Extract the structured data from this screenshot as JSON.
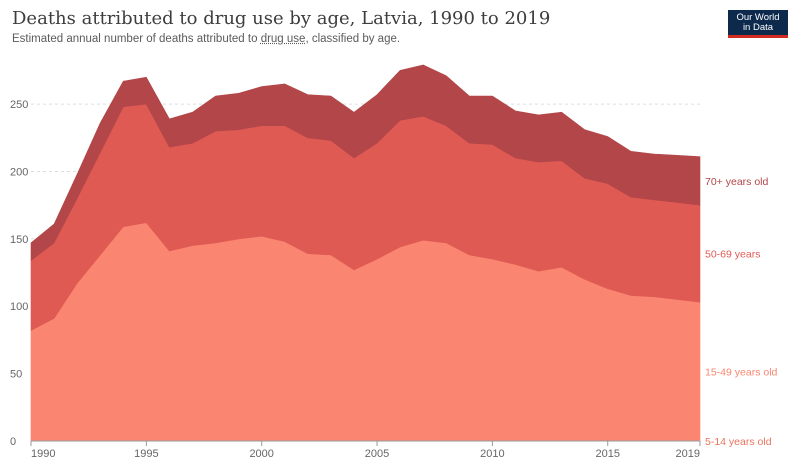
{
  "header": {
    "title": "Deaths attributed to drug use by age, Latvia, 1990 to 2019",
    "subtitle_pre": "Estimated annual number of deaths attributed to ",
    "subtitle_link": "drug use",
    "subtitle_post": ", classified by age.",
    "logo_text": "Our World in Data"
  },
  "chart_data": {
    "type": "area",
    "stacked": true,
    "x": [
      1990,
      1991,
      1992,
      1993,
      1994,
      1995,
      1996,
      1997,
      1998,
      1999,
      2000,
      2001,
      2002,
      2003,
      2004,
      2005,
      2006,
      2007,
      2008,
      2009,
      2010,
      2011,
      2012,
      2013,
      2014,
      2015,
      2016,
      2017,
      2018,
      2019
    ],
    "xticks": [
      1990,
      1995,
      2000,
      2005,
      2010,
      2015,
      2019
    ],
    "yticks": [
      0,
      50,
      100,
      150,
      200,
      250
    ],
    "ylim": [
      0,
      282
    ],
    "grid": true,
    "legend_position": "right, end of series",
    "series": [
      {
        "name": "5-14 years old",
        "color": "#e9735c",
        "values": [
          0,
          0,
          0,
          0,
          0,
          0,
          0,
          0,
          0,
          0,
          0,
          0,
          0,
          0,
          0,
          0,
          0,
          0,
          0,
          0,
          0,
          0,
          0,
          0,
          0,
          0,
          0,
          0,
          0,
          0
        ]
      },
      {
        "name": "15-49 years old",
        "color": "#fa8671",
        "values": [
          82,
          91,
          117,
          138,
          159,
          162,
          141,
          145,
          147,
          150,
          152,
          148,
          139,
          138,
          127,
          135,
          144,
          149,
          147,
          138,
          135,
          131,
          126,
          129,
          120,
          113,
          108,
          107,
          105,
          103
        ]
      },
      {
        "name": "50-69 years",
        "color": "#e05a54",
        "values": [
          52,
          56,
          63,
          76,
          89,
          88,
          77,
          76,
          83,
          81,
          82,
          86,
          86,
          85,
          83,
          86,
          94,
          92,
          87,
          83,
          85,
          79,
          81,
          79,
          75,
          78,
          73,
          72,
          72,
          72
        ]
      },
      {
        "name": "70+ years old",
        "color": "#b24648",
        "values": [
          13,
          14,
          18,
          22,
          19,
          20,
          21,
          23,
          26,
          27,
          29,
          31,
          32,
          33,
          34,
          36,
          37,
          38,
          37,
          35,
          36,
          35,
          35,
          36,
          36,
          35,
          34,
          34,
          35,
          36
        ]
      }
    ]
  }
}
